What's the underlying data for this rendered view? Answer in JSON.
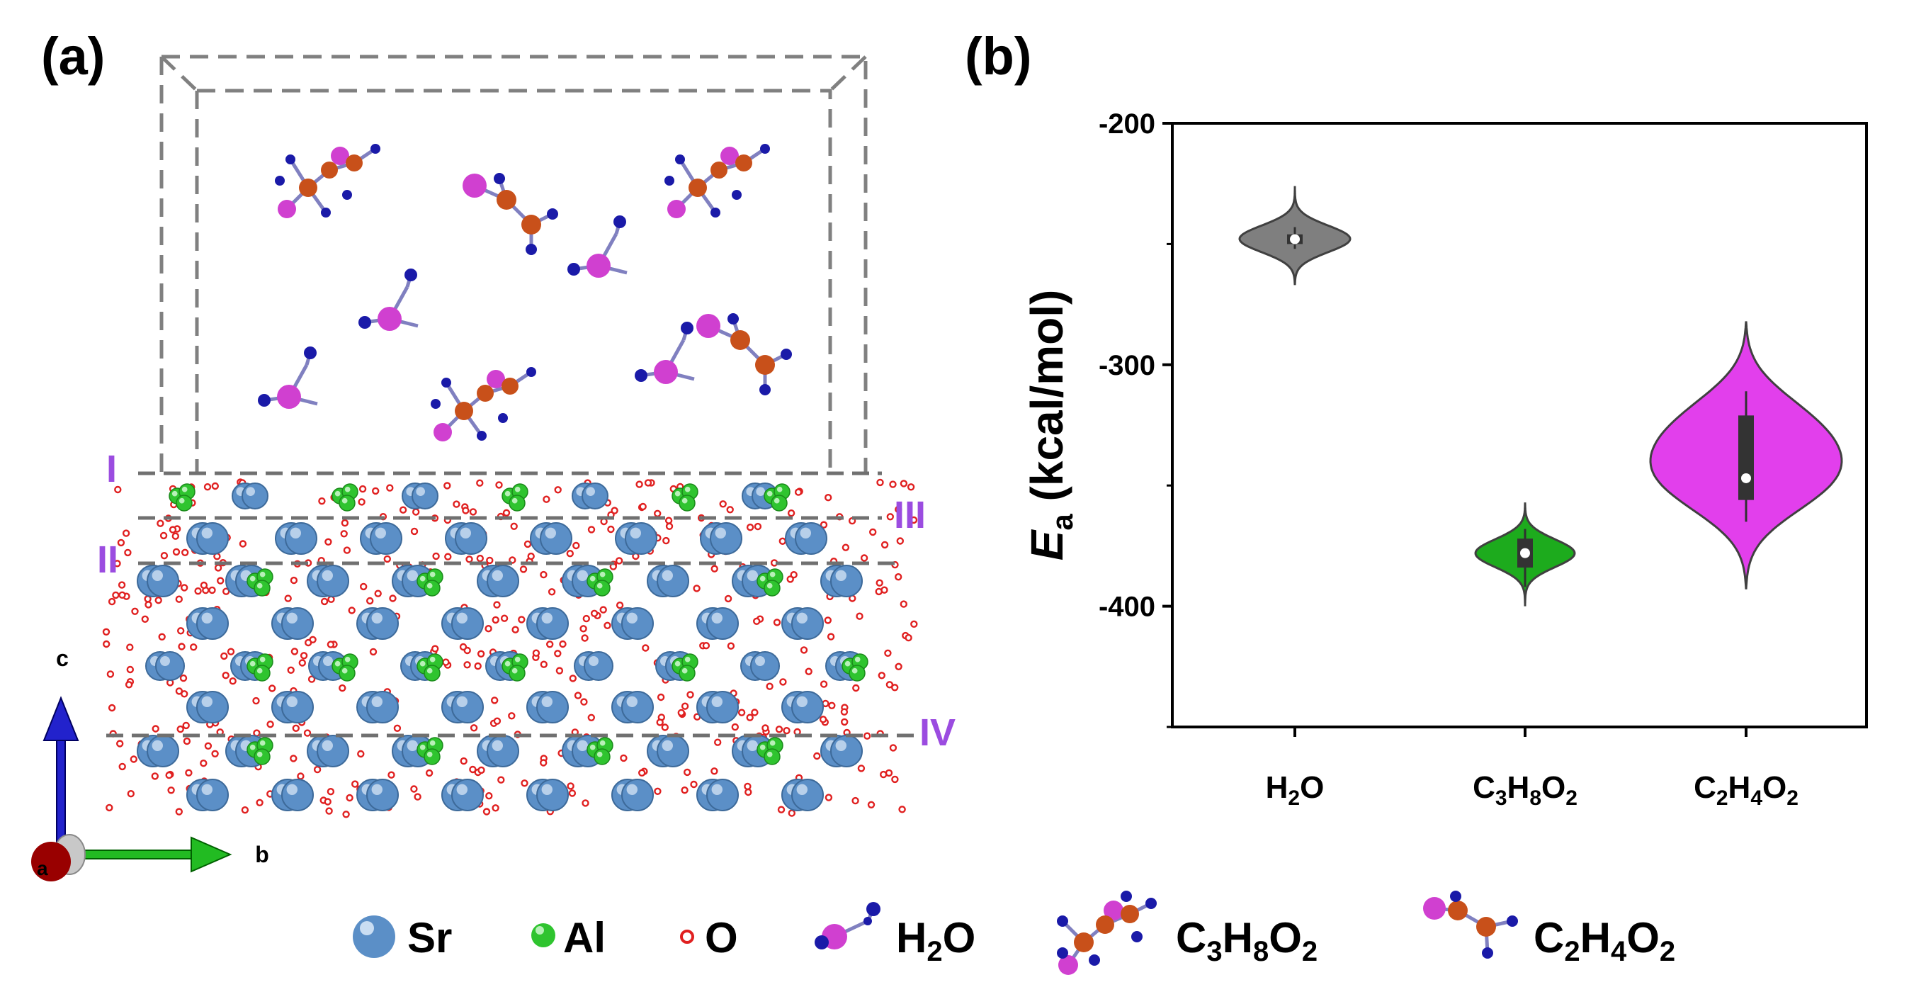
{
  "panels": {
    "a_label": "(a)",
    "b_label": "(b)"
  },
  "structure": {
    "layer_labels": [
      "I",
      "II",
      "III",
      "IV"
    ],
    "axes": {
      "c": "c",
      "b": "b",
      "a": "a"
    }
  },
  "legend": {
    "items": [
      {
        "label": "Sr"
      },
      {
        "label": "Al"
      },
      {
        "label": "O"
      },
      {
        "main": "H",
        "sub": "2",
        "rest": "O"
      },
      {
        "parts": [
          "C",
          "3",
          "H",
          "8",
          "O",
          "2"
        ]
      },
      {
        "parts": [
          "C",
          "2",
          "H",
          "4",
          "O",
          "2"
        ]
      }
    ]
  },
  "colors": {
    "sr": "#5b8fc7",
    "al": "#2fc42f",
    "o": "#e02020",
    "h": "#1a1aa8",
    "c": "#c8501a",
    "o_mol": "#d040d0",
    "h2o_violin": "#7f7f7f",
    "c3h8o2_violin": "#1dab1d",
    "c2h4o2_violin": "#e23fec",
    "layer_label": "#9b4ce0"
  },
  "chart_data": {
    "type": "violin",
    "title": "",
    "xlabel": "",
    "ylabel": {
      "main": "E",
      "sub": "a",
      "rest": " (kcal/mol)"
    },
    "ylim": [
      -450,
      -200
    ],
    "yticks": [
      "-200",
      "-300",
      "-400"
    ],
    "ytick_values": [
      -200,
      -300,
      -400
    ],
    "categories": [
      {
        "name": "H2O",
        "parts": [
          "H",
          "2",
          "O"
        ],
        "color": "#7f7f7f",
        "median": -248,
        "q1": -250,
        "q3": -246,
        "whisker_low": -252,
        "whisker_high": -243,
        "kde_min": -267,
        "kde_max": -226,
        "mode": -248
      },
      {
        "name": "C3H8O2",
        "parts": [
          "C",
          "3",
          "H",
          "8",
          "O",
          "2"
        ],
        "color": "#1dab1d",
        "median": -378,
        "q1": -384,
        "q3": -372,
        "whisker_low": -392,
        "whisker_high": -368,
        "kde_min": -400,
        "kde_max": -357,
        "mode": -378
      },
      {
        "name": "C2H4O2",
        "parts": [
          "C",
          "2",
          "H",
          "4",
          "O",
          "2"
        ],
        "color": "#e23fec",
        "median": -347,
        "q1": -356,
        "q3": -321,
        "whisker_low": -365,
        "whisker_high": -311,
        "kde_min": -393,
        "kde_max": -282,
        "modes": [
          -324,
          -349
        ]
      }
    ]
  }
}
